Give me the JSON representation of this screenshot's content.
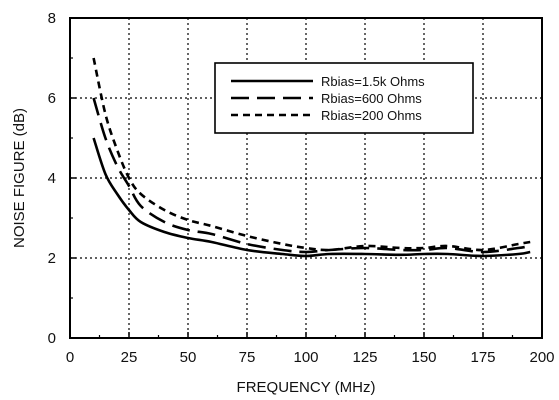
{
  "chart_data": {
    "type": "line",
    "title": "",
    "xlabel": "FREQUENCY (MHz)",
    "ylabel": "NOISE FIGURE (dB)",
    "xlim": [
      0,
      200
    ],
    "ylim": [
      0,
      8
    ],
    "xticks": [
      0,
      25,
      50,
      75,
      100,
      125,
      150,
      175,
      200
    ],
    "yticks": [
      0,
      2,
      4,
      6,
      8
    ],
    "grid": true,
    "legend_position": "top-right",
    "series": [
      {
        "name": "Rbias=1.5k Ohms",
        "style": "solid",
        "color": "#000000",
        "x": [
          10,
          15,
          20,
          25,
          30,
          40,
          50,
          60,
          75,
          90,
          100,
          110,
          125,
          140,
          150,
          160,
          175,
          190,
          195
        ],
        "y": [
          5.0,
          4.1,
          3.6,
          3.2,
          2.9,
          2.65,
          2.5,
          2.4,
          2.2,
          2.1,
          2.05,
          2.1,
          2.1,
          2.08,
          2.1,
          2.1,
          2.05,
          2.1,
          2.15
        ]
      },
      {
        "name": "Rbias=600 Ohms",
        "style": "long-dash",
        "color": "#000000",
        "x": [
          10,
          15,
          20,
          25,
          30,
          40,
          50,
          60,
          75,
          90,
          100,
          110,
          125,
          140,
          150,
          160,
          175,
          190,
          195
        ],
        "y": [
          6.0,
          5.0,
          4.3,
          3.8,
          3.3,
          2.9,
          2.7,
          2.6,
          2.35,
          2.2,
          2.15,
          2.2,
          2.25,
          2.2,
          2.2,
          2.25,
          2.15,
          2.25,
          2.3
        ]
      },
      {
        "name": "Rbias=200 Ohms",
        "style": "short-dash",
        "color": "#000000",
        "x": [
          10,
          15,
          20,
          25,
          30,
          40,
          50,
          60,
          75,
          90,
          100,
          110,
          125,
          140,
          150,
          160,
          175,
          190,
          195
        ],
        "y": [
          7.0,
          5.6,
          4.7,
          4.0,
          3.6,
          3.2,
          2.95,
          2.8,
          2.55,
          2.35,
          2.25,
          2.2,
          2.3,
          2.25,
          2.25,
          2.3,
          2.2,
          2.35,
          2.4
        ]
      }
    ]
  }
}
